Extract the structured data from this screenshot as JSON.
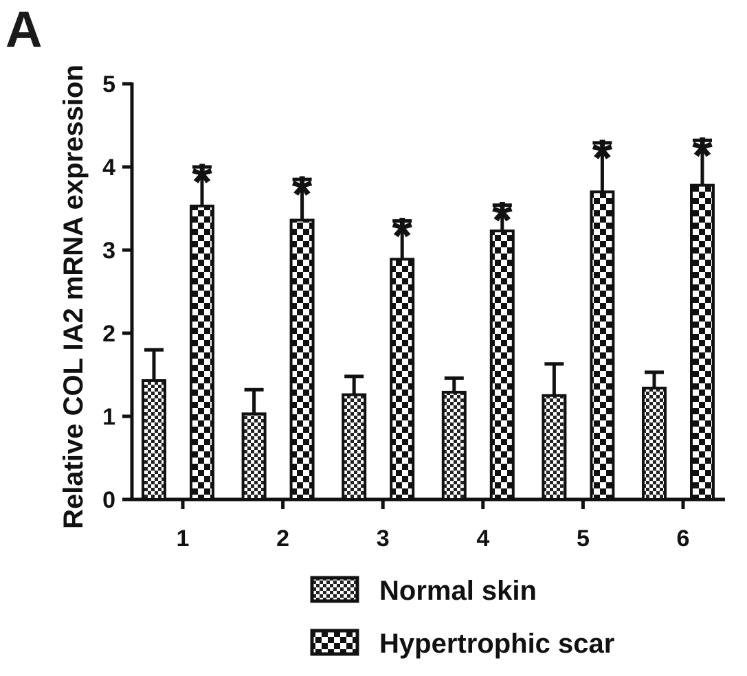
{
  "panel_label": "A",
  "chart_data": {
    "type": "bar",
    "categories": [
      "1",
      "2",
      "3",
      "4",
      "5",
      "6"
    ],
    "ylabel": "Relative COL IA2 mRNA expression",
    "xlabel": "",
    "ylim": [
      0,
      5
    ],
    "yticks": [
      "0",
      "1",
      "2",
      "3",
      "4",
      "5"
    ],
    "legend_position": "bottom-right",
    "series": [
      {
        "name": "Normal skin",
        "values": [
          1.43,
          1.03,
          1.26,
          1.29,
          1.25,
          1.34
        ],
        "errors": [
          0.37,
          0.29,
          0.22,
          0.17,
          0.38,
          0.19
        ],
        "pattern": "fine-check"
      },
      {
        "name": "Hypertrophic scar",
        "values": [
          3.53,
          3.36,
          2.89,
          3.23,
          3.7,
          3.78
        ],
        "errors": [
          0.47,
          0.49,
          0.46,
          0.31,
          0.59,
          0.54
        ],
        "pattern": "coarse-check",
        "significance": [
          "*",
          "*",
          "*",
          "*",
          "*",
          "*"
        ]
      }
    ],
    "colors": {
      "bar_fill_dark": "#111111",
      "bar_fill_light": "#ffffff",
      "axis": "#111111"
    }
  }
}
